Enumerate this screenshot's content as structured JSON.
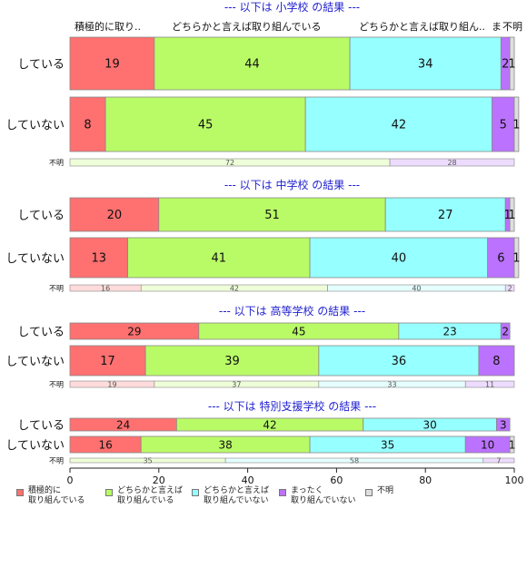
{
  "colors": {
    "active": "#ff7070",
    "somewhat_active": "#b9fb67",
    "somewhat_not": "#96ffff",
    "not_at_all": "#bb72ff",
    "unknown": "#dedede",
    "title": "#1f1fd0"
  },
  "chart_data": {
    "type": "bar",
    "orientation": "horizontal-stacked-100",
    "xlim": [
      0,
      100
    ],
    "xticks": [
      "0",
      "20",
      "40",
      "60",
      "80",
      "100"
    ],
    "series_names": [
      "積極的に\n取り組んでいる",
      "どちらかと言えば\n取り組んでいる",
      "どちらかと言えば\n取り組んでいない",
      "まったく\n取り組んでいない",
      "不明"
    ],
    "top_header_labels": [
      "積極的に取り..",
      "どちらかと言えば取り組んでいる",
      "どちらかと言えば取り組ん..",
      "ま",
      "不明"
    ],
    "panels": [
      {
        "title": "--- 以下は 小学校 の結果 ---",
        "rows": [
          {
            "label": "している",
            "values": [
              19,
              44,
              34,
              2,
              1
            ]
          },
          {
            "label": "していない",
            "values": [
              8,
              45,
              42,
              5,
              1
            ]
          },
          {
            "label": "不明",
            "values": [
              0,
              72,
              0,
              28,
              0
            ]
          }
        ]
      },
      {
        "title": "--- 以下は 中学校 の結果 ---",
        "rows": [
          {
            "label": "している",
            "values": [
              20,
              51,
              27,
              1,
              1
            ]
          },
          {
            "label": "していない",
            "values": [
              13,
              41,
              40,
              6,
              1
            ]
          },
          {
            "label": "不明",
            "values": [
              16,
              42,
              40,
              2,
              0
            ]
          }
        ]
      },
      {
        "title": "--- 以下は 高等学校 の結果 ---",
        "rows": [
          {
            "label": "している",
            "values": [
              29,
              45,
              23,
              2,
              0
            ]
          },
          {
            "label": "していない",
            "values": [
              17,
              39,
              36,
              8,
              0
            ]
          },
          {
            "label": "不明",
            "values": [
              19,
              37,
              33,
              11,
              0
            ]
          }
        ]
      },
      {
        "title": "--- 以下は 特別支援学校 の結果 ---",
        "rows": [
          {
            "label": "している",
            "values": [
              24,
              42,
              30,
              3,
              0
            ]
          },
          {
            "label": "していない",
            "values": [
              16,
              38,
              35,
              10,
              1
            ]
          },
          {
            "label": "不明",
            "values": [
              0,
              35,
              58,
              7,
              0
            ]
          }
        ]
      }
    ]
  }
}
